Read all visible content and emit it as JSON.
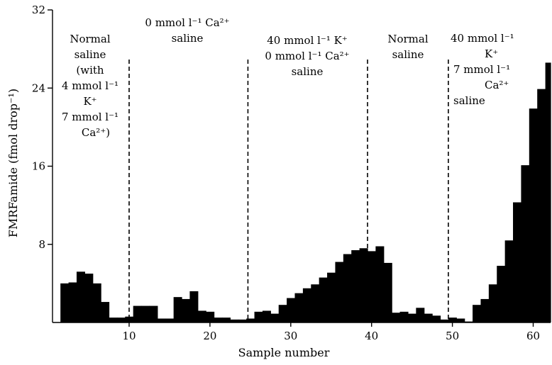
{
  "chart_data": {
    "type": "bar",
    "title": "",
    "xlabel": "Sample number",
    "ylabel": "FMRFamide (fmol drop⁻¹)",
    "xlim": [
      1,
      62
    ],
    "ylim": [
      0,
      32
    ],
    "x_ticks": [
      10,
      20,
      30,
      40,
      50,
      60
    ],
    "y_ticks": [
      8,
      16,
      24,
      32
    ],
    "grid": false,
    "x": [
      1,
      2,
      3,
      4,
      5,
      6,
      7,
      8,
      9,
      10,
      11,
      12,
      13,
      14,
      15,
      16,
      17,
      18,
      19,
      20,
      21,
      22,
      23,
      24,
      25,
      26,
      27,
      28,
      29,
      30,
      31,
      32,
      33,
      34,
      35,
      36,
      37,
      38,
      39,
      40,
      41,
      42,
      43,
      44,
      45,
      46,
      47,
      48,
      49,
      50,
      51,
      52,
      53,
      54,
      55,
      56,
      57,
      58,
      59,
      60,
      61,
      62
    ],
    "values": [
      4.0,
      4.1,
      5.2,
      5.0,
      4.0,
      2.1,
      0.5,
      0.5,
      0.6,
      1.7,
      1.7,
      1.7,
      0.4,
      0.4,
      2.6,
      2.4,
      3.2,
      1.2,
      1.1,
      0.5,
      0.5,
      0.3,
      0.3,
      0.4,
      1.1,
      1.2,
      0.9,
      1.8,
      2.5,
      3.0,
      3.5,
      3.9,
      4.6,
      5.1,
      6.2,
      7.0,
      7.4,
      7.6,
      7.3,
      7.8,
      6.1,
      1.0,
      1.1,
      0.9,
      1.5,
      0.9,
      0.7,
      0.3,
      0.5,
      0.4,
      0.1,
      1.8,
      2.4,
      3.9,
      5.8,
      8.4,
      12.3,
      16.1,
      21.9,
      23.9,
      26.6,
      26.1
    ],
    "annotations": [
      {
        "lines": [
          "Normal",
          "saline",
          "(with",
          "4 mmol l⁻¹",
          "K⁺",
          "7 mmol l⁻¹",
          "Ca²⁺)"
        ]
      },
      {
        "lines": [
          "0 mmol l⁻¹ Ca²⁺",
          "saline"
        ]
      },
      {
        "lines": [
          "40 mmol l⁻¹ K⁺",
          "0 mmol l⁻¹ Ca²⁺",
          "saline"
        ]
      },
      {
        "lines": [
          "Normal",
          "saline"
        ]
      },
      {
        "lines": [
          "40 mmol l⁻¹",
          "K⁺",
          "7 mmol l⁻¹",
          "Ca²⁺",
          "saline"
        ]
      }
    ],
    "dividers_x": [
      10,
      24.7,
      39.5,
      49.5
    ]
  }
}
